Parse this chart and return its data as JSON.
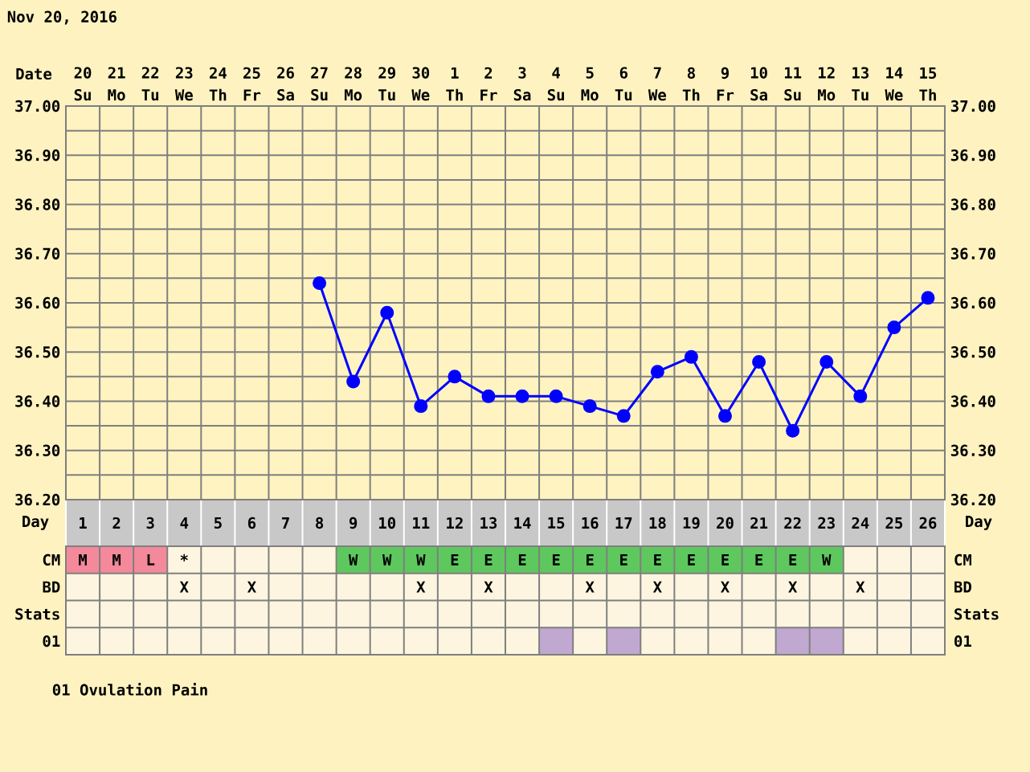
{
  "chart_data": [
    {
      "type": "line",
      "title": "Nov 20, 2016",
      "xlabel": "Day",
      "x2label": "Date",
      "categories": [
        "1",
        "2",
        "3",
        "4",
        "5",
        "6",
        "7",
        "8",
        "9",
        "10",
        "11",
        "12",
        "13",
        "14",
        "15",
        "16",
        "17",
        "18",
        "19",
        "20",
        "21",
        "22",
        "23",
        "24",
        "25",
        "26"
      ],
      "series": [
        {
          "color": "#0000ff",
          "values": [
            null,
            null,
            null,
            null,
            null,
            null,
            null,
            36.64,
            36.44,
            36.58,
            36.39,
            36.45,
            36.41,
            36.41,
            36.41,
            36.39,
            36.37,
            36.46,
            36.49,
            36.37,
            36.48,
            36.34,
            36.48,
            36.41,
            36.55,
            36.61
          ]
        }
      ],
      "marker": "circle",
      "grid": true,
      "ylim": [
        36.2,
        37.0
      ],
      "yticks": [
        {
          "value": 36.2,
          "label": "36.20"
        },
        {
          "value": 36.3,
          "label": "36.30"
        },
        {
          "value": 36.4,
          "label": "36.40"
        },
        {
          "value": 36.5,
          "label": "36.50"
        },
        {
          "value": 36.6,
          "label": "36.60"
        },
        {
          "value": 36.7,
          "label": "36.70"
        },
        {
          "value": 36.8,
          "label": "36.80"
        },
        {
          "value": 36.9,
          "label": "36.90"
        },
        {
          "value": 37.0,
          "label": "37.00"
        }
      ],
      "y2lim": [
        36.2,
        37.0
      ],
      "y2ticks": [
        {
          "value": 36.2,
          "label": "36.20"
        },
        {
          "value": 36.3,
          "label": "36.30"
        },
        {
          "value": 36.4,
          "label": "36.40"
        },
        {
          "value": 36.5,
          "label": "36.50"
        },
        {
          "value": 36.6,
          "label": "36.60"
        },
        {
          "value": 36.7,
          "label": "36.70"
        },
        {
          "value": 36.8,
          "label": "36.80"
        },
        {
          "value": 36.9,
          "label": "36.90"
        },
        {
          "value": 37.0,
          "label": "37.00"
        }
      ],
      "x2lim": [
        "2016-11-19T12:00",
        "2016-12-15T12:00"
      ],
      "x2ticks": [
        {
          "value": "2016-11-20",
          "label": "20 Su"
        },
        {
          "value": "2016-11-21",
          "label": "21 Mo"
        },
        {
          "value": "2016-11-22",
          "label": "22 Tu"
        },
        {
          "value": "2016-11-23",
          "label": "23 We"
        },
        {
          "value": "2016-11-24",
          "label": "24 Th"
        },
        {
          "value": "2016-11-25",
          "label": "25 Fr"
        },
        {
          "value": "2016-11-26",
          "label": "26 Sa"
        },
        {
          "value": "2016-11-27",
          "label": "27 Su"
        },
        {
          "value": "2016-11-28",
          "label": "28 Mo"
        },
        {
          "value": "2016-11-29",
          "label": "29 Tu"
        },
        {
          "value": "2016-11-30",
          "label": "30 We"
        },
        {
          "value": "2016-12-01",
          "label": "1 Th"
        },
        {
          "value": "2016-12-02",
          "label": "2 Fr"
        },
        {
          "value": "2016-12-03",
          "label": "3 Sa"
        },
        {
          "value": "2016-12-04",
          "label": "4 Su"
        },
        {
          "value": "2016-12-05",
          "label": "5 Mo"
        },
        {
          "value": "2016-12-06",
          "label": "6 Tu"
        },
        {
          "value": "2016-12-07",
          "label": "7 We"
        },
        {
          "value": "2016-12-08",
          "label": "8 Th"
        },
        {
          "value": "2016-12-09",
          "label": "9 Fr"
        },
        {
          "value": "2016-12-10",
          "label": "10 Sa"
        },
        {
          "value": "2016-12-11",
          "label": "11 Su"
        },
        {
          "value": "2016-12-12",
          "label": "12 Mo"
        },
        {
          "value": "2016-12-13",
          "label": "13 Tu"
        },
        {
          "value": "2016-12-14",
          "label": "14 We"
        },
        {
          "value": "2016-12-15",
          "label": "15 Th"
        }
      ]
    },
    {
      "type": "heatmap",
      "categories": [
        null,
        null,
        null,
        null,
        null,
        null,
        null,
        null,
        null,
        null,
        null,
        null,
        null,
        null,
        null,
        null,
        null,
        null,
        null,
        null,
        null,
        null,
        null,
        null,
        null,
        null
      ],
      "y_categories": [
        "CM",
        "BD",
        "Stats",
        "01"
      ],
      "y2_categories": [
        "CM",
        "BD",
        "Stats",
        "01"
      ],
      "cells": [
        [
          null,
          null,
          null,
          null,
          null,
          null,
          null,
          null,
          null,
          null,
          null,
          null,
          null,
          null,
          null,
          null,
          null,
          null,
          null,
          null,
          null,
          null,
          null,
          null,
          null,
          null
        ],
        [
          null,
          null,
          null,
          null,
          null,
          null,
          null,
          null,
          null,
          null,
          null,
          null,
          null,
          null,
          null,
          null,
          null,
          null,
          null,
          null,
          null,
          null,
          null,
          null,
          null,
          null
        ],
        [
          null,
          null,
          null,
          null,
          null,
          null,
          null,
          null,
          null,
          null,
          null,
          null,
          null,
          null,
          null,
          null,
          null,
          null,
          null,
          null,
          null,
          null,
          null,
          null,
          null,
          null
        ],
        [
          null,
          null,
          null,
          null,
          null,
          null,
          null,
          null,
          null,
          null,
          null,
          null,
          null,
          null,
          null,
          null,
          null,
          null,
          null,
          null,
          null,
          null,
          null,
          null,
          null,
          null
        ]
      ],
      "cell_labels": [
        [
          "M",
          "M",
          "L",
          "*",
          null,
          null,
          null,
          null,
          "W",
          "W",
          "W",
          "E",
          "E",
          "E",
          "E",
          "E",
          "E",
          "E",
          "E",
          "E",
          "E",
          "E",
          "W",
          null,
          null,
          null
        ],
        [
          null,
          null,
          null,
          "X",
          null,
          "X",
          null,
          null,
          null,
          null,
          "X",
          null,
          "X",
          null,
          null,
          "X",
          null,
          "X",
          null,
          "X",
          null,
          "X",
          null,
          "X",
          null,
          null
        ],
        [
          null,
          null,
          null,
          null,
          null,
          null,
          null,
          null,
          null,
          null,
          null,
          null,
          null,
          null,
          null,
          null,
          null,
          null,
          null,
          null,
          null,
          null,
          null,
          null,
          null,
          null
        ],
        [
          null,
          null,
          null,
          null,
          null,
          null,
          null,
          null,
          null,
          null,
          null,
          null,
          null,
          null,
          null,
          null,
          null,
          null,
          null,
          null,
          null,
          null,
          null,
          null,
          null,
          null
        ]
      ],
      "colors": [
        [
          "#f4899b",
          "#f4899b",
          "#f4899b",
          null,
          null,
          null,
          null,
          null,
          "#5ec85e",
          "#5ec85e",
          "#5ec85e",
          "#5ec85e",
          "#5ec85e",
          "#5ec85e",
          "#5ec85e",
          "#5ec85e",
          "#5ec85e",
          "#5ec85e",
          "#5ec85e",
          "#5ec85e",
          "#5ec85e",
          "#5ec85e",
          "#5ec85e",
          null,
          null,
          null
        ],
        [
          null,
          null,
          null,
          null,
          null,
          null,
          null,
          null,
          null,
          null,
          null,
          null,
          null,
          null,
          null,
          null,
          null,
          null,
          null,
          null,
          null,
          null,
          null,
          null,
          null,
          null
        ],
        [
          null,
          null,
          null,
          null,
          null,
          null,
          null,
          null,
          null,
          null,
          null,
          null,
          null,
          null,
          null,
          null,
          null,
          null,
          null,
          null,
          null,
          null,
          null,
          null,
          null,
          null
        ],
        [
          null,
          null,
          null,
          null,
          null,
          null,
          null,
          null,
          null,
          null,
          null,
          null,
          null,
          null,
          "#c0a8d0",
          null,
          "#c0a8d0",
          null,
          null,
          null,
          null,
          "#c0a8d0",
          "#c0a8d0",
          null,
          null,
          null
        ]
      ],
      "annotations": [
        "01 Ovulation Pain"
      ]
    }
  ]
}
